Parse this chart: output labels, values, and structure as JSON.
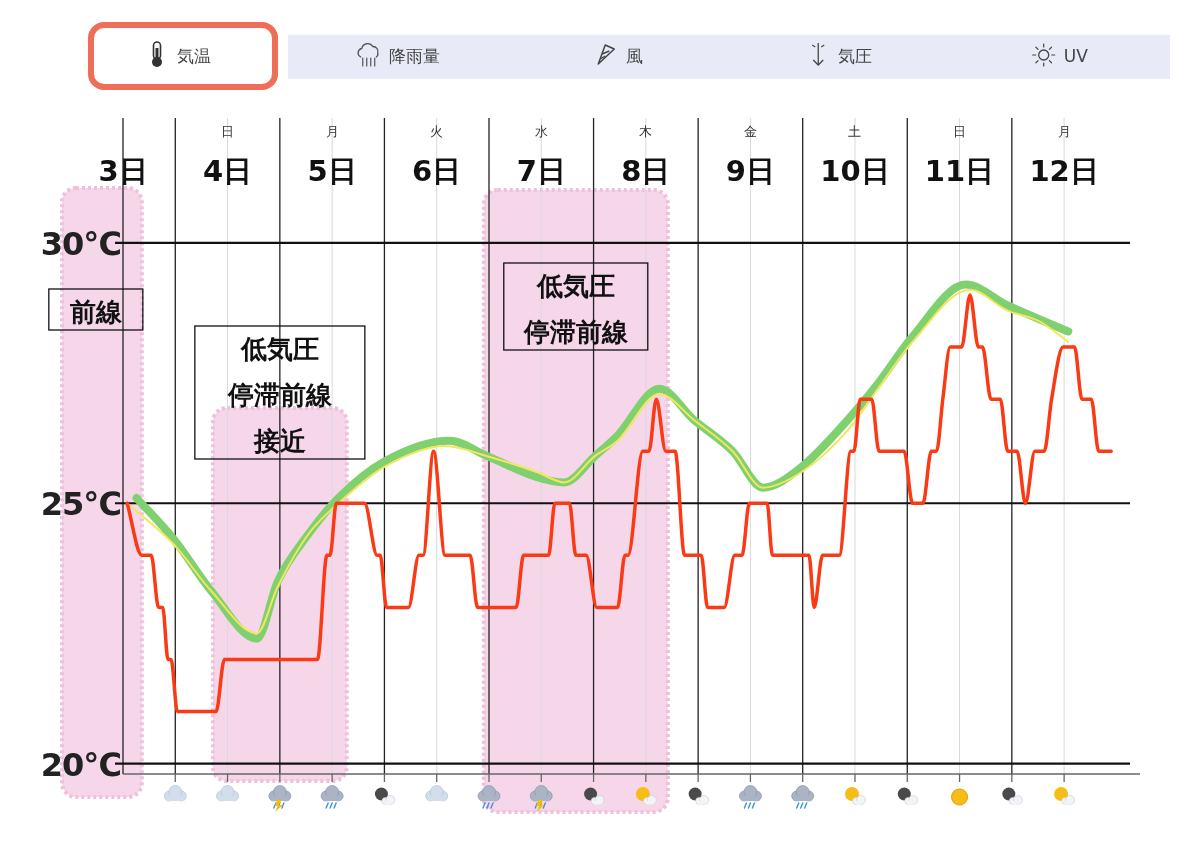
{
  "chart_data": {
    "type": "line",
    "title": "気温",
    "annotations": [
      "降雨量",
      "風",
      "気圧",
      "UV",
      "日",
      "月",
      "火",
      "水",
      "木",
      "金",
      "土",
      "日",
      "月"
    ],
    "xlim": [
      3,
      12.63
    ],
    "xticks": [
      {
        "value": 3,
        "label": "3日"
      },
      {
        "value": 3.5,
        "label": null
      },
      {
        "value": 4,
        "label": "4日"
      },
      {
        "value": 4.5,
        "label": null
      },
      {
        "value": 5,
        "label": "5日"
      },
      {
        "value": 5.5,
        "label": null
      },
      {
        "value": 6,
        "label": "6日"
      },
      {
        "value": 6.5,
        "label": null
      },
      {
        "value": 7,
        "label": "7日"
      },
      {
        "value": 7.5,
        "label": null
      },
      {
        "value": 8,
        "label": "8日"
      },
      {
        "value": 8.5,
        "label": null
      },
      {
        "value": 9,
        "label": "9日"
      },
      {
        "value": 9.5,
        "label": null
      },
      {
        "value": 10,
        "label": "10日"
      },
      {
        "value": 10.5,
        "label": null
      },
      {
        "value": 11,
        "label": "11日"
      },
      {
        "value": 11.5,
        "label": null
      },
      {
        "value": 12,
        "label": "12日"
      }
    ],
    "ylim": [
      19.8,
      32.4
    ],
    "yticks": [
      {
        "value": 20,
        "label": "20℃"
      },
      {
        "value": 25,
        "label": "25℃"
      },
      {
        "value": 30,
        "label": "30℃"
      }
    ],
    "grid": true,
    "bands": [
      {
        "axis": "x",
        "from": 3,
        "to": 3.18,
        "label": "前線",
        "color": "#f6d7ea"
      },
      {
        "axis": "x",
        "from": 3.86,
        "to": 5.14,
        "label": "低気圧停滞前線接近",
        "color": "#f6d7ea"
      },
      {
        "axis": "x",
        "from": 6.45,
        "to": 8.21,
        "label": "低気圧停滞前線",
        "color": "#f6d7ea"
      }
    ],
    "series": [
      {
        "color": "#7fd06f",
        "x": [
          3.13,
          3.49,
          3.85,
          4.28,
          4.48,
          4.77,
          5.06,
          5.5,
          6.12,
          6.49,
          6.96,
          7.22,
          7.51,
          7.73,
          8.13,
          8.46,
          8.83,
          9.12,
          9.49,
          9.93,
          10.22,
          10.55,
          11.06,
          11.46,
          12.04
        ],
        "values": [
          25.1,
          24.3,
          23.3,
          22.4,
          23.5,
          24.4,
          25.1,
          25.8,
          26.2,
          25.9,
          25.5,
          25.4,
          25.9,
          26.3,
          27.2,
          26.6,
          26.0,
          25.3,
          25.7,
          26.6,
          27.3,
          28.2,
          29.2,
          28.8,
          28.3
        ]
      },
      {
        "color": "#f5e55e",
        "x": [
          3.04,
          3.49,
          3.85,
          4.28,
          4.48,
          4.77,
          5.06,
          5.5,
          6.08,
          6.49,
          6.96,
          7.22,
          7.51,
          7.73,
          8.13,
          8.46,
          8.83,
          9.12,
          9.49,
          9.93,
          10.22,
          10.55,
          11.1,
          11.46,
          11.76,
          12.04
        ],
        "values": [
          25.0,
          24.2,
          23.3,
          22.5,
          23.4,
          24.4,
          25.0,
          25.7,
          26.1,
          25.9,
          25.6,
          25.4,
          25.9,
          26.2,
          27.1,
          26.6,
          26.0,
          25.3,
          25.6,
          26.4,
          27.2,
          28.1,
          29.1,
          28.7,
          28.5,
          28.1
        ]
      },
      {
        "color": "#fa3a14",
        "x": [
          3.04,
          3.18,
          3.27,
          3.34,
          3.38,
          3.43,
          3.46,
          3.52,
          3.89,
          3.97,
          4.86,
          4.95,
          4.98,
          5.04,
          5.31,
          5.43,
          5.46,
          5.52,
          5.73,
          5.83,
          5.87,
          5.97,
          6.08,
          6.32,
          6.39,
          6.76,
          6.83,
          7.07,
          7.13,
          7.27,
          7.33,
          7.43,
          7.53,
          7.73,
          7.8,
          7.83,
          7.97,
          8.03,
          8.1,
          8.19,
          8.28,
          8.37,
          8.53,
          8.59,
          8.75,
          8.85,
          8.92,
          8.99,
          9.16,
          9.21,
          9.56,
          9.61,
          9.69,
          9.85,
          9.96,
          9.99,
          10.05,
          10.16,
          10.23,
          10.47,
          10.55,
          10.65,
          10.73,
          10.78,
          10.84,
          10.91,
          11.02,
          11.1,
          11.18,
          11.22,
          11.3,
          11.39,
          11.46,
          11.55,
          11.63,
          11.72,
          11.81,
          11.88,
          11.99,
          12.1,
          12.17,
          12.26,
          12.33,
          12.45
        ],
        "values": [
          25,
          24,
          24,
          23,
          23,
          22,
          22,
          21,
          21,
          22,
          22,
          24,
          24,
          25,
          25,
          24,
          24,
          23,
          23,
          24,
          24,
          26,
          24,
          24,
          23,
          23,
          24,
          24,
          25,
          25,
          24,
          24,
          23,
          23,
          24,
          24,
          26,
          26,
          27,
          26,
          26,
          24,
          24,
          23,
          23,
          24,
          24,
          25,
          25,
          24,
          24,
          23,
          24,
          24,
          26,
          26,
          27,
          27,
          26,
          26,
          25,
          25,
          26,
          26,
          27,
          28,
          28,
          29,
          28,
          28,
          27,
          27,
          26,
          26,
          25,
          26,
          26,
          27,
          28,
          28,
          27,
          27,
          26,
          26
        ]
      }
    ]
  }
}
